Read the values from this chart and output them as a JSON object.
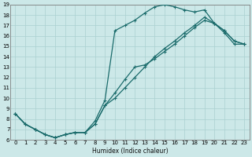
{
  "xlabel": "Humidex (Indice chaleur)",
  "background_color": "#cce8e8",
  "grid_color": "#aad0d0",
  "line_color": "#1a6b6b",
  "xlim": [
    -0.5,
    23.5
  ],
  "ylim": [
    6,
    19
  ],
  "yticks": [
    6,
    7,
    8,
    9,
    10,
    11,
    12,
    13,
    14,
    15,
    16,
    17,
    18,
    19
  ],
  "xticks": [
    0,
    1,
    2,
    3,
    4,
    5,
    6,
    7,
    8,
    9,
    10,
    11,
    12,
    13,
    14,
    15,
    16,
    17,
    18,
    19,
    20,
    21,
    22,
    23
  ],
  "line1_x": [
    0,
    1,
    2,
    3,
    4,
    5,
    6,
    7,
    8,
    9,
    10,
    11,
    12,
    13,
    14,
    15,
    16,
    17,
    18,
    19,
    20,
    21,
    22,
    23
  ],
  "line1_y": [
    8.5,
    7.5,
    7.0,
    6.5,
    6.2,
    6.5,
    6.7,
    6.7,
    7.8,
    9.8,
    16.5,
    17.0,
    17.5,
    18.2,
    18.8,
    19.0,
    18.8,
    18.5,
    18.3,
    18.5,
    17.2,
    16.3,
    15.2,
    15.2
  ],
  "line2_x": [
    0,
    1,
    2,
    3,
    4,
    5,
    6,
    7,
    8,
    9,
    10,
    11,
    12,
    13,
    14,
    15,
    16,
    17,
    18,
    19,
    20,
    21,
    22,
    23
  ],
  "line2_y": [
    8.5,
    7.5,
    7.0,
    6.5,
    6.2,
    6.5,
    6.7,
    6.7,
    7.5,
    9.3,
    10.0,
    11.0,
    12.0,
    13.0,
    14.0,
    14.8,
    15.5,
    16.3,
    17.0,
    17.8,
    17.2,
    16.5,
    15.5,
    15.2
  ],
  "line3_x": [
    0,
    1,
    2,
    3,
    4,
    5,
    6,
    7,
    8,
    9,
    10,
    11,
    12,
    13,
    14,
    15,
    16,
    17,
    18,
    19,
    20,
    21,
    22,
    23
  ],
  "line3_y": [
    8.5,
    7.5,
    7.0,
    6.5,
    6.2,
    6.5,
    6.7,
    6.7,
    7.5,
    9.3,
    10.5,
    11.8,
    13.0,
    13.2,
    13.8,
    14.5,
    15.2,
    16.0,
    16.8,
    17.5,
    17.2,
    16.5,
    15.5,
    15.2
  ],
  "marker": "+",
  "markersize": 3.0,
  "linewidth": 0.9,
  "xlabel_fontsize": 5.5,
  "tick_fontsize": 5.0
}
